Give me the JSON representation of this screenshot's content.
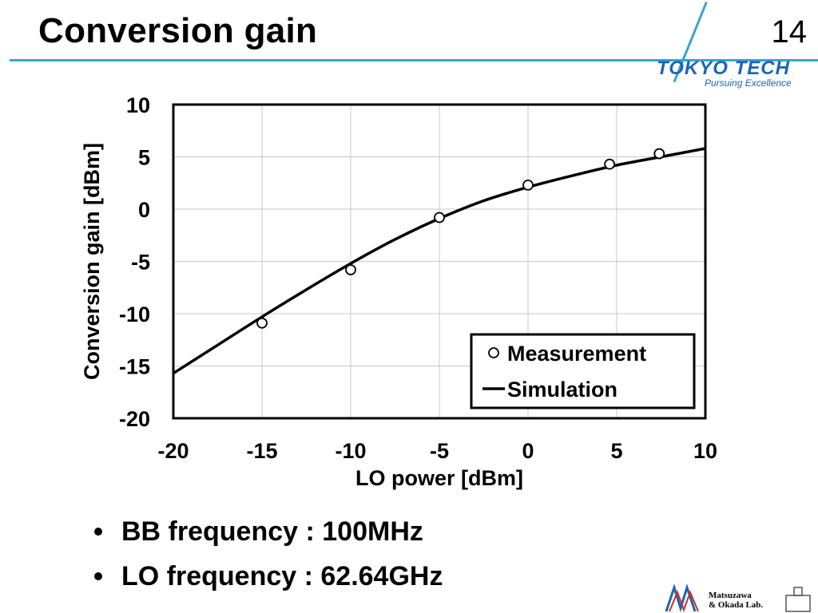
{
  "slide": {
    "title": "Conversion gain",
    "page_number": "14",
    "logo": {
      "name": "TOKYO TECH",
      "tagline": "Pursuing Excellence"
    },
    "bullets": [
      "BB frequency : 100MHz",
      "LO frequency : 62.64GHz"
    ],
    "lab_logo": {
      "line1": "Matsuzawa",
      "line2": "& Okada Lab."
    }
  },
  "chart_data": {
    "type": "line",
    "title": "",
    "xlabel": "LO power [dBm]",
    "ylabel": "Conversion gain [dBm]",
    "xlim": [
      -20,
      10
    ],
    "ylim": [
      -20,
      10
    ],
    "xticks": [
      -20,
      -15,
      -10,
      -5,
      0,
      5,
      10
    ],
    "yticks": [
      -20,
      -15,
      -10,
      -5,
      0,
      5,
      10
    ],
    "grid": true,
    "legend_position": "bottom-right",
    "series": [
      {
        "name": "Measurement",
        "kind": "scatter",
        "marker": "open-circle",
        "color": "#000000",
        "x": [
          -15,
          -10,
          -5,
          0,
          4.6,
          7.4
        ],
        "y": [
          -10.9,
          -5.8,
          -0.8,
          2.3,
          4.3,
          5.3
        ]
      },
      {
        "name": "Simulation",
        "kind": "line",
        "color": "#000000",
        "x": [
          -20,
          -17.5,
          -15,
          -12.5,
          -10,
          -7.5,
          -5,
          -2.5,
          0,
          2.5,
          5,
          7.5,
          10
        ],
        "y": [
          -15.7,
          -13.0,
          -10.3,
          -7.7,
          -5.2,
          -2.9,
          -0.9,
          0.8,
          2.1,
          3.2,
          4.2,
          5.0,
          5.8
        ]
      }
    ]
  }
}
